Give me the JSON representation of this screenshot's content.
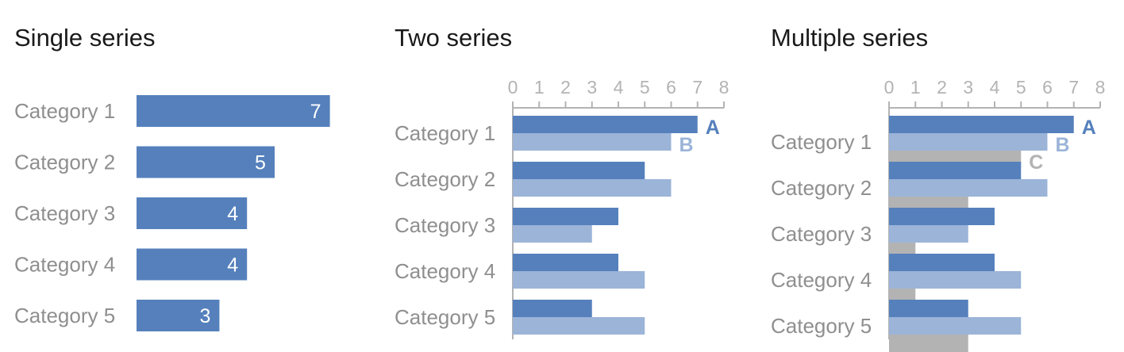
{
  "colors": {
    "A": "#5580bc",
    "B": "#9bb4d8",
    "C": "#b3b3b3",
    "axis": "#b3b3b3"
  },
  "panels": [
    {
      "title": "Single series"
    },
    {
      "title": "Two series"
    },
    {
      "title": "Multiple series"
    }
  ],
  "chart_data": [
    {
      "type": "bar",
      "orientation": "horizontal",
      "title": "Single series",
      "categories": [
        "Category 1",
        "Category 2",
        "Category 3",
        "Category 4",
        "Category 5"
      ],
      "series": [
        {
          "values": [
            7,
            5,
            4,
            4,
            3
          ],
          "color": "#5580bc"
        }
      ],
      "data_labels": true,
      "axis": false
    },
    {
      "type": "bar",
      "orientation": "horizontal",
      "title": "Two series",
      "categories": [
        "Category 1",
        "Category 2",
        "Category 3",
        "Category 4",
        "Category 5"
      ],
      "series": [
        {
          "name": "A",
          "values": [
            7,
            5,
            4,
            4,
            3
          ],
          "color": "#5580bc"
        },
        {
          "name": "B",
          "values": [
            6,
            6,
            3,
            5,
            5
          ],
          "color": "#9bb4d8"
        }
      ],
      "xlim": [
        0,
        8
      ],
      "ticks": [
        "0",
        "1",
        "2",
        "3",
        "4",
        "5",
        "6",
        "7",
        "8"
      ],
      "axis_position": "top",
      "series_labels_on_first_category": true
    },
    {
      "type": "bar",
      "orientation": "horizontal",
      "title": "Multiple series",
      "categories": [
        "Category 1",
        "Category 2",
        "Category 3",
        "Category 4",
        "Category 5"
      ],
      "series": [
        {
          "name": "A",
          "values": [
            7,
            5,
            4,
            4,
            3
          ],
          "color": "#5580bc"
        },
        {
          "name": "B",
          "values": [
            6,
            6,
            3,
            5,
            5
          ],
          "color": "#9bb4d8"
        },
        {
          "name": "C",
          "values": [
            5,
            3,
            1,
            1,
            3
          ],
          "color": "#b3b3b3"
        }
      ],
      "xlim": [
        0,
        8
      ],
      "ticks": [
        "0",
        "1",
        "2",
        "3",
        "4",
        "5",
        "6",
        "7",
        "8"
      ],
      "axis_position": "top",
      "series_labels_on_first_category": true
    }
  ]
}
